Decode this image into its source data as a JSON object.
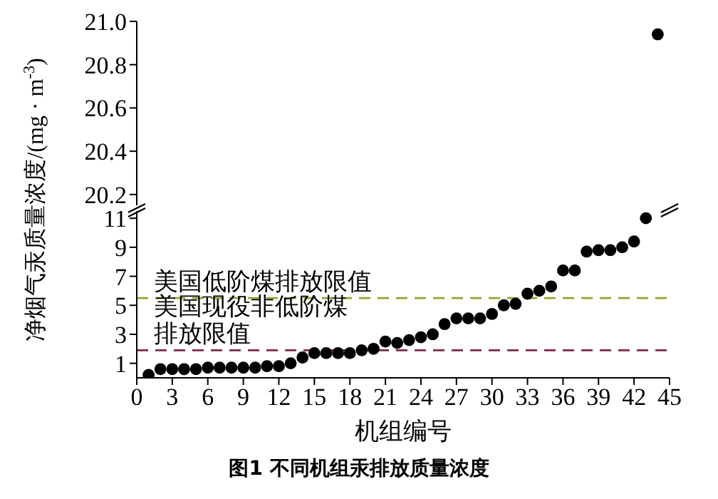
{
  "chart_data": [
    {
      "type": "scatter",
      "ylabel": "净烟气汞质量浓度/(mg · m$^{-3}$)",
      "x": [
        44
      ],
      "xlim": [
        0,
        45
      ],
      "ylim": [
        20.15,
        21.0
      ],
      "yticks": [
        20.2,
        20.4,
        20.6,
        20.8,
        {
          "value": 21,
          "label": "21.0"
        }
      ],
      "tick_labels": "y",
      "marker": "circle",
      "series": [
        {
          "color": "#000000",
          "values": [
            20.94
          ]
        }
      ]
    },
    {
      "type": "scatter",
      "title": "图1 不同机组汞排放质量浓度",
      "xlabel": "机组编号",
      "x": [
        1,
        2,
        3,
        4,
        5,
        6,
        7,
        8,
        9,
        10,
        11,
        12,
        13,
        14,
        15,
        16,
        17,
        18,
        19,
        20,
        21,
        22,
        23,
        24,
        25,
        26,
        27,
        28,
        29,
        30,
        31,
        32,
        33,
        34,
        35,
        36,
        37,
        38,
        39,
        40,
        41,
        42,
        43
      ],
      "xlim": [
        0,
        45
      ],
      "xticks": [
        0,
        3,
        6,
        9,
        12,
        15,
        18,
        21,
        24,
        27,
        30,
        33,
        36,
        39,
        42,
        45
      ],
      "ylim": [
        0,
        11.5
      ],
      "yticks": [
        1,
        3,
        5,
        7,
        9,
        11
      ],
      "marker": "circle",
      "series": [
        {
          "color": "#000000",
          "values": [
            0.2,
            0.6,
            0.6,
            0.6,
            0.6,
            0.7,
            0.7,
            0.7,
            0.7,
            0.7,
            0.8,
            0.8,
            1.0,
            1.4,
            1.7,
            1.7,
            1.7,
            1.7,
            1.9,
            2.0,
            2.5,
            2.4,
            2.6,
            2.8,
            3.0,
            3.7,
            4.1,
            4.1,
            4.1,
            4.4,
            5.0,
            5.1,
            5.8,
            6.0,
            6.3,
            7.4,
            7.4,
            8.7,
            8.8,
            8.8,
            9.0,
            9.4,
            11.0
          ]
        }
      ],
      "ref_lines": [
        {
          "axis": "y",
          "value": 5.5,
          "label": "美国低阶煤排放限值",
          "color": "#8aa832",
          "line_style": "dashed"
        },
        {
          "axis": "y",
          "value": 1.9,
          "label": "美国现役非低阶煤排放限值",
          "color": "#7b2c3f",
          "line_style": "dashed"
        }
      ]
    }
  ]
}
